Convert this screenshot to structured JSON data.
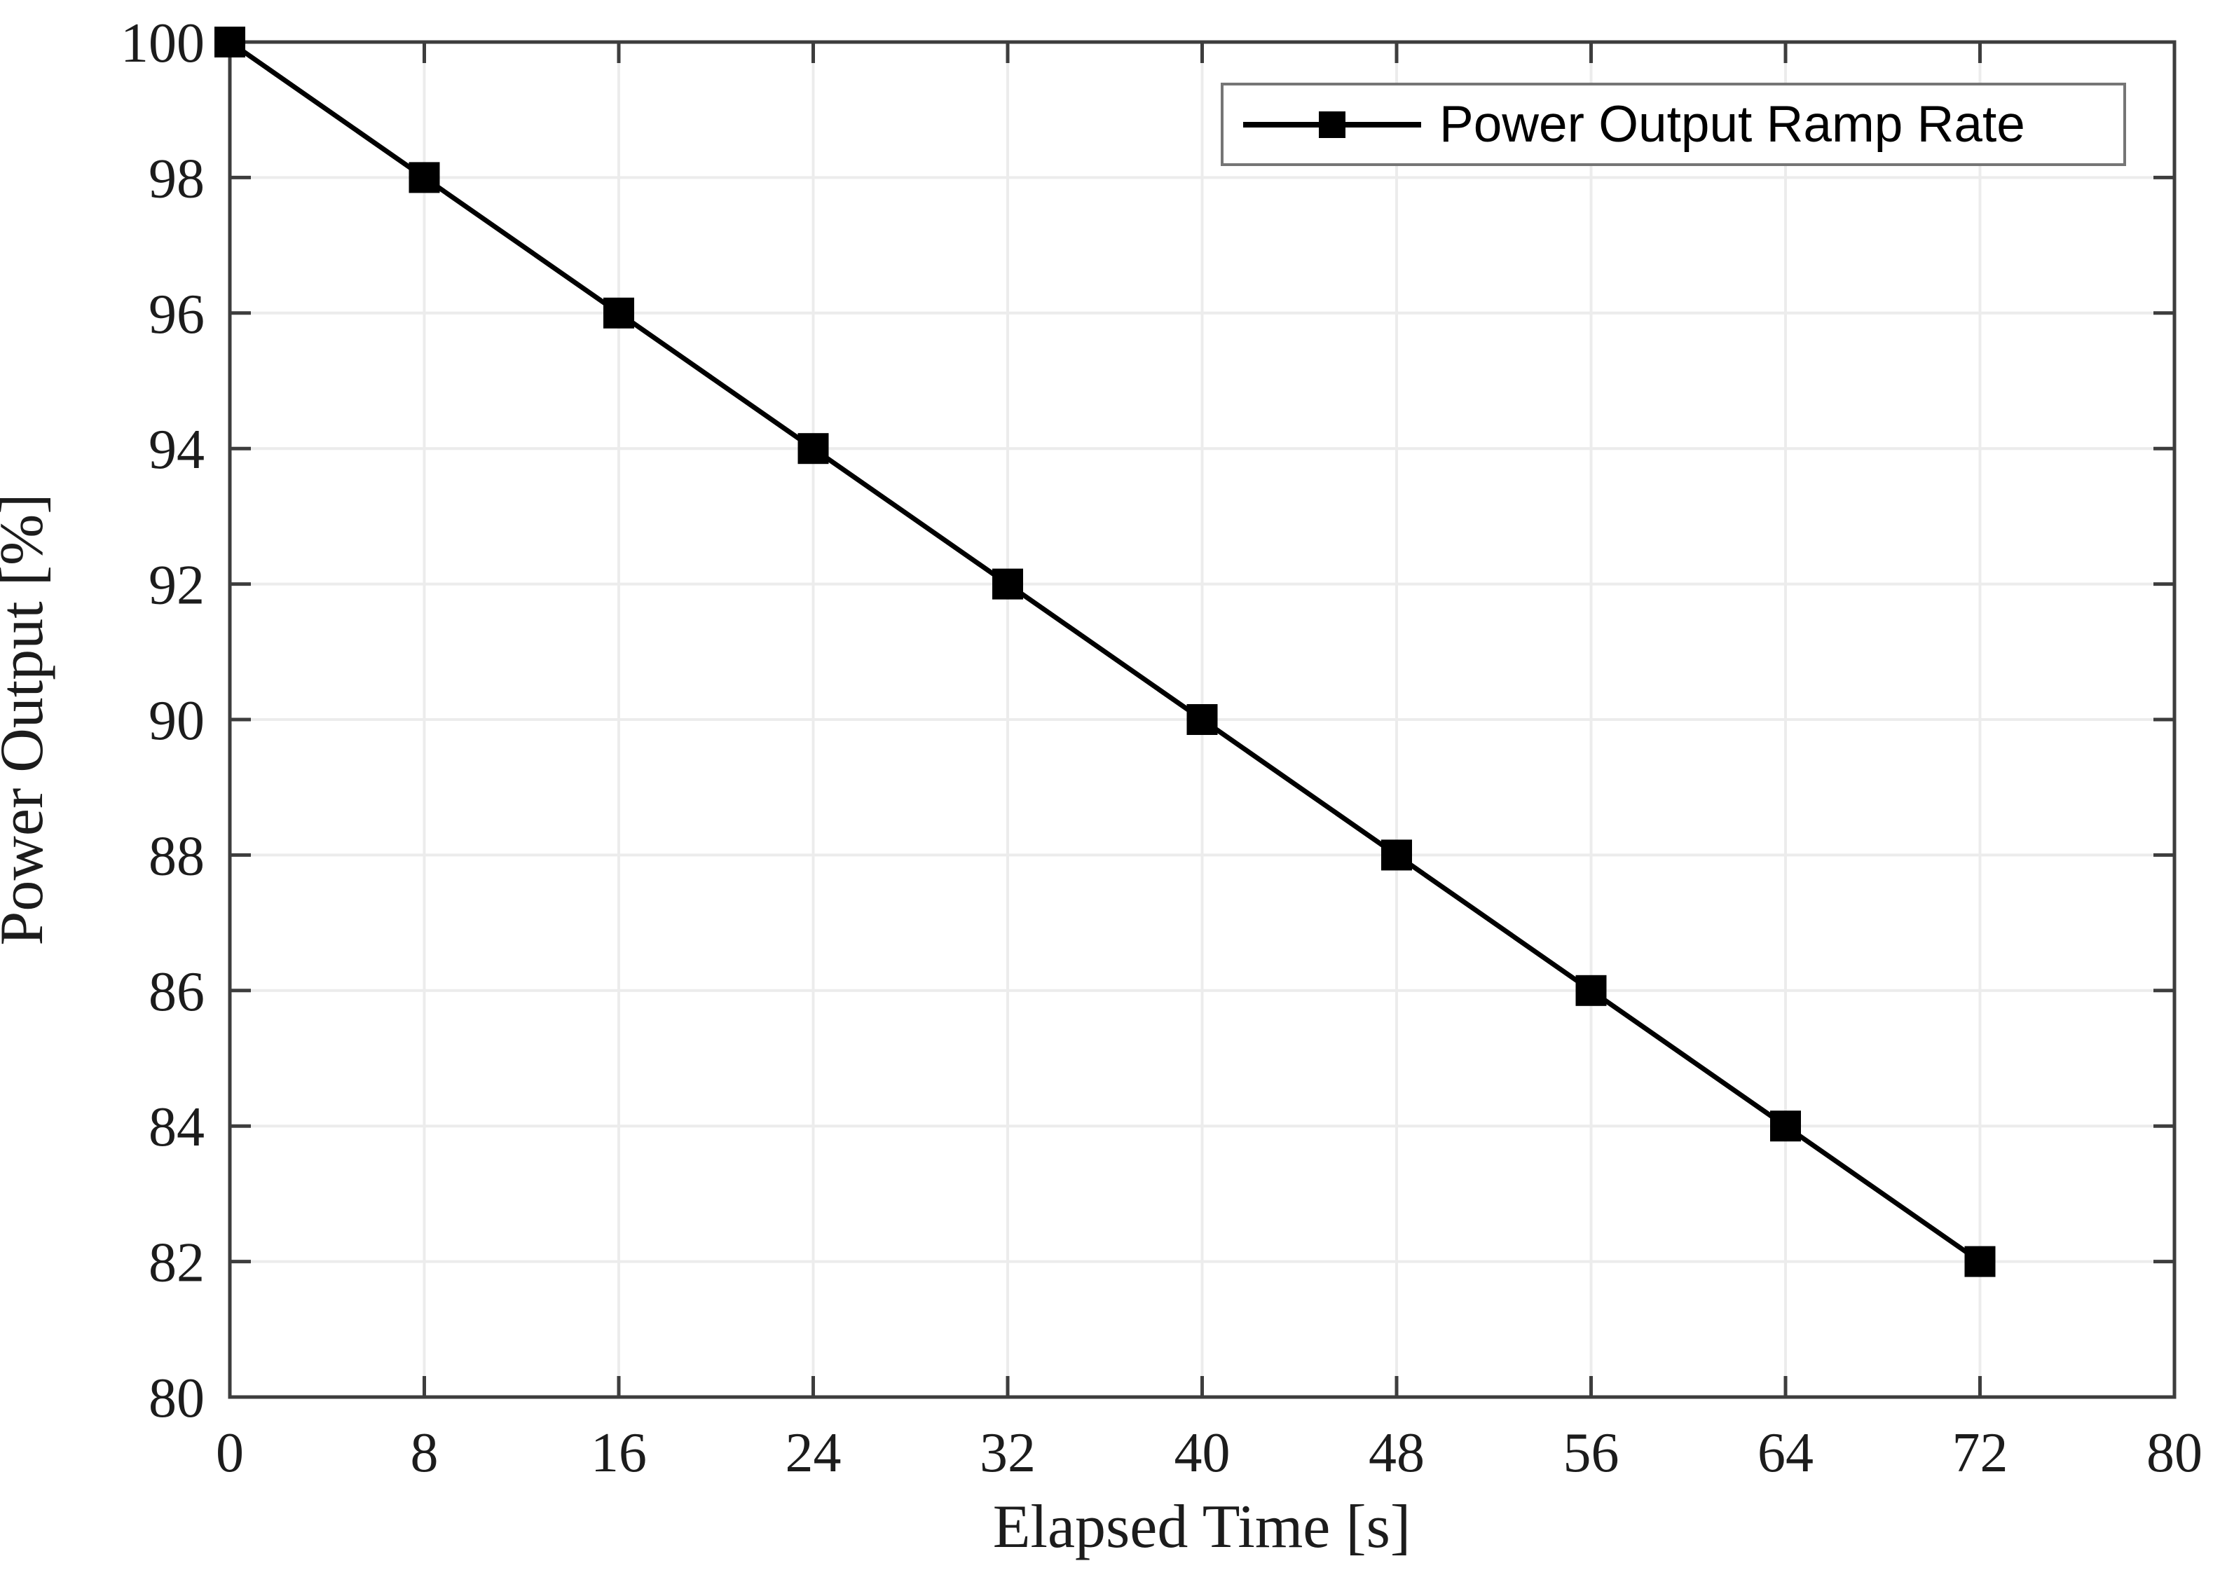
{
  "chart_data": {
    "type": "line",
    "title": "",
    "xlabel": "Elapsed Time [s]",
    "ylabel": "Power Output [%]",
    "series": [
      {
        "name": "Power Output Ramp Rate",
        "x": [
          0,
          8,
          16,
          24,
          32,
          40,
          48,
          56,
          64,
          72
        ],
        "y": [
          100,
          98,
          96,
          94,
          92,
          90,
          88,
          86,
          84,
          82
        ]
      }
    ],
    "xlim": [
      0,
      80
    ],
    "ylim": [
      80,
      100
    ],
    "xticks": [
      0,
      8,
      16,
      24,
      32,
      40,
      48,
      56,
      64,
      72,
      80
    ],
    "yticks": [
      80,
      82,
      84,
      86,
      88,
      90,
      92,
      94,
      96,
      98,
      100
    ],
    "grid": true,
    "legend": {
      "position": "top-right",
      "label": "Power Output Ramp Rate"
    },
    "style": {
      "line_color": "#000000",
      "line_width": 7,
      "marker": "square",
      "marker_size": 44,
      "marker_color": "#000000",
      "grid_color": "#ececec",
      "axis_color": "#3d3d3d",
      "tick_label_color": "#1c1c1c",
      "background": "#ffffff",
      "legend_border_color": "#757575"
    }
  }
}
